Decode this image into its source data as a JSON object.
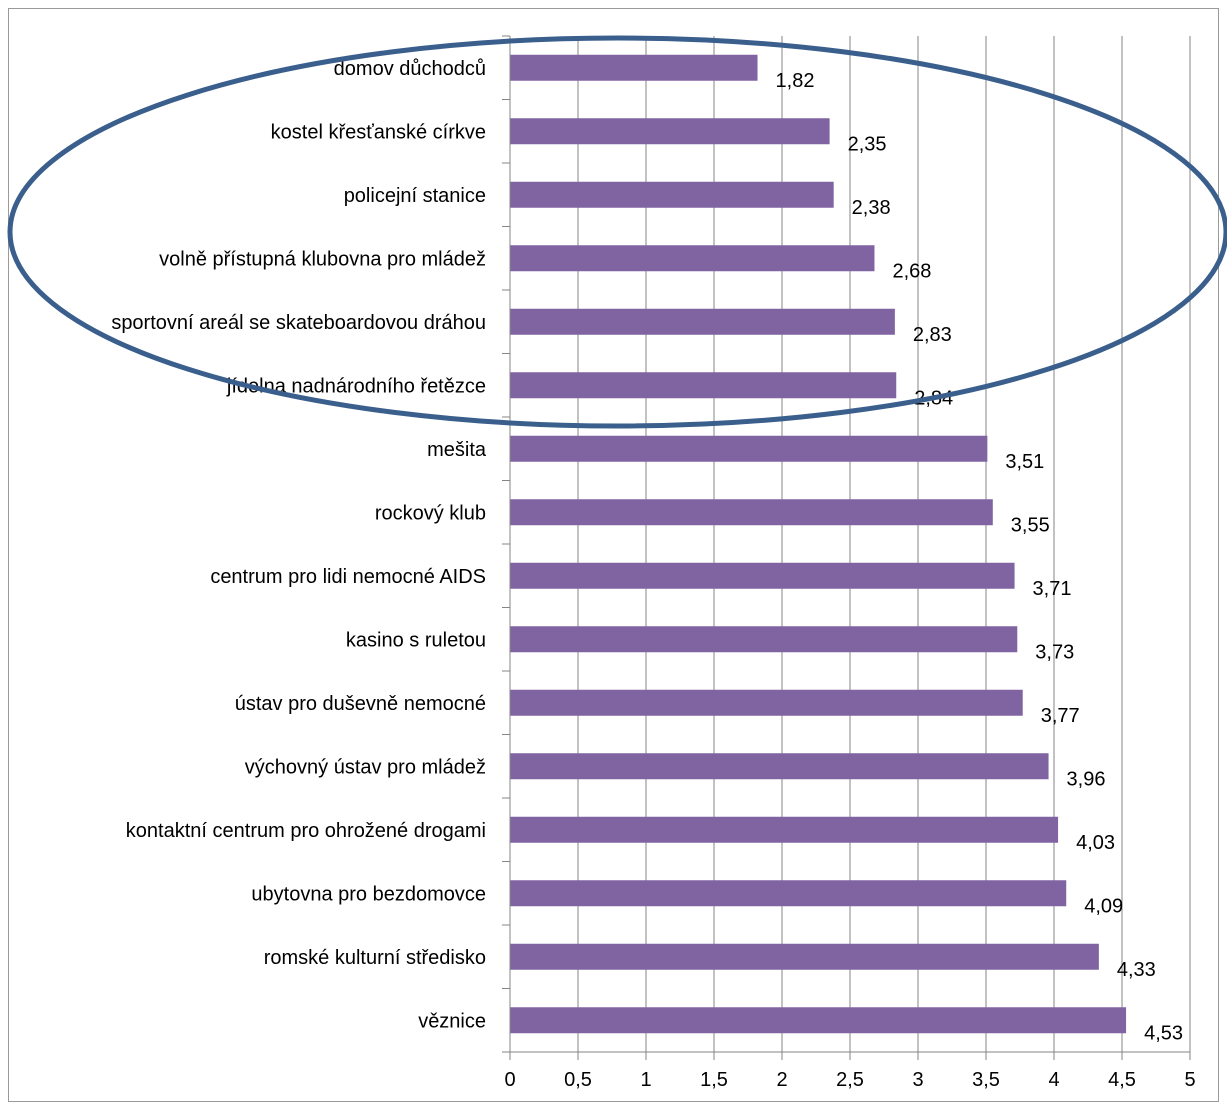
{
  "chart_data": {
    "type": "bar",
    "orientation": "horizontal",
    "title": "",
    "xlabel": "",
    "ylabel": "",
    "xlim": [
      0,
      5
    ],
    "grid": true,
    "legend": "none",
    "bar_color": "#8064A2",
    "annotation_color": "#3A5F8C",
    "annotation": "ellipse around the first six categories",
    "categories": [
      "domov důchodců",
      "kostel křesťanské církve",
      "policejní stanice",
      "volně přístupná klubovna pro mládež",
      "sportovní areál se skateboardovou dráhou",
      "jídelna nadnárodního řetězce",
      "mešita",
      "rockový klub",
      "centrum pro lidi nemocné AIDS",
      "kasino s ruletou",
      "ústav pro duševně nemocné",
      "výchovný ústav pro mládež",
      "kontaktní centrum pro ohrožené drogami",
      "ubytovna pro bezdomovce",
      "romské kulturní středisko",
      "věznice"
    ],
    "values": [
      1.82,
      2.35,
      2.38,
      2.68,
      2.83,
      2.84,
      3.51,
      3.55,
      3.71,
      3.73,
      3.77,
      3.96,
      4.03,
      4.09,
      4.33,
      4.53
    ],
    "data_labels": [
      "1,82",
      "2,35",
      "2,38",
      "2,68",
      "2,83",
      "2,84",
      "3,51",
      "3,55",
      "3,71",
      "3,73",
      "3,77",
      "3,96",
      "4,03",
      "4,09",
      "4,33",
      "4,53"
    ],
    "x_ticks": [
      0,
      0.5,
      1,
      1.5,
      2,
      2.5,
      3,
      3.5,
      4,
      4.5,
      5
    ],
    "x_tick_labels": [
      "0",
      "0,5",
      "1",
      "1,5",
      "2",
      "2,5",
      "3",
      "3,5",
      "4",
      "4,5",
      "5"
    ]
  }
}
